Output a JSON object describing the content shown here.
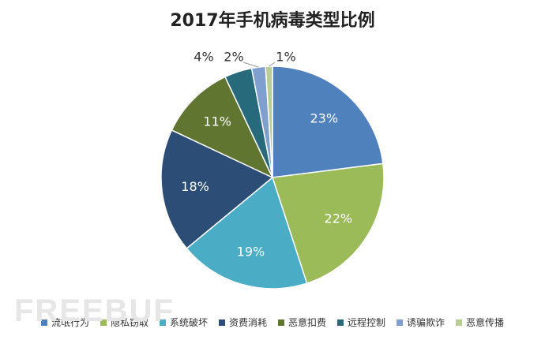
{
  "chart_data": {
    "type": "pie",
    "title": "2017年手机病毒类型比例",
    "categories": [
      "流氓行为",
      "隐私窃取",
      "系统破坏",
      "资费消耗",
      "恶意扣费",
      "远程控制",
      "诱骗欺诈",
      "恶意传播"
    ],
    "values": [
      23,
      22,
      19,
      18,
      11,
      4,
      2,
      1
    ],
    "labels": [
      "23%",
      "22%",
      "19%",
      "18%",
      "11%",
      "4%",
      "2%",
      "1%"
    ],
    "colors": [
      "#4F81BD",
      "#9BBB59",
      "#4BACC6",
      "#2C4D75",
      "#5F7530",
      "#276A7C",
      "#7F9FCF",
      "#B9CD96"
    ],
    "legend_position": "bottom",
    "start_angle": "12 o'clock, clockwise"
  },
  "watermark": "FREEBUF"
}
